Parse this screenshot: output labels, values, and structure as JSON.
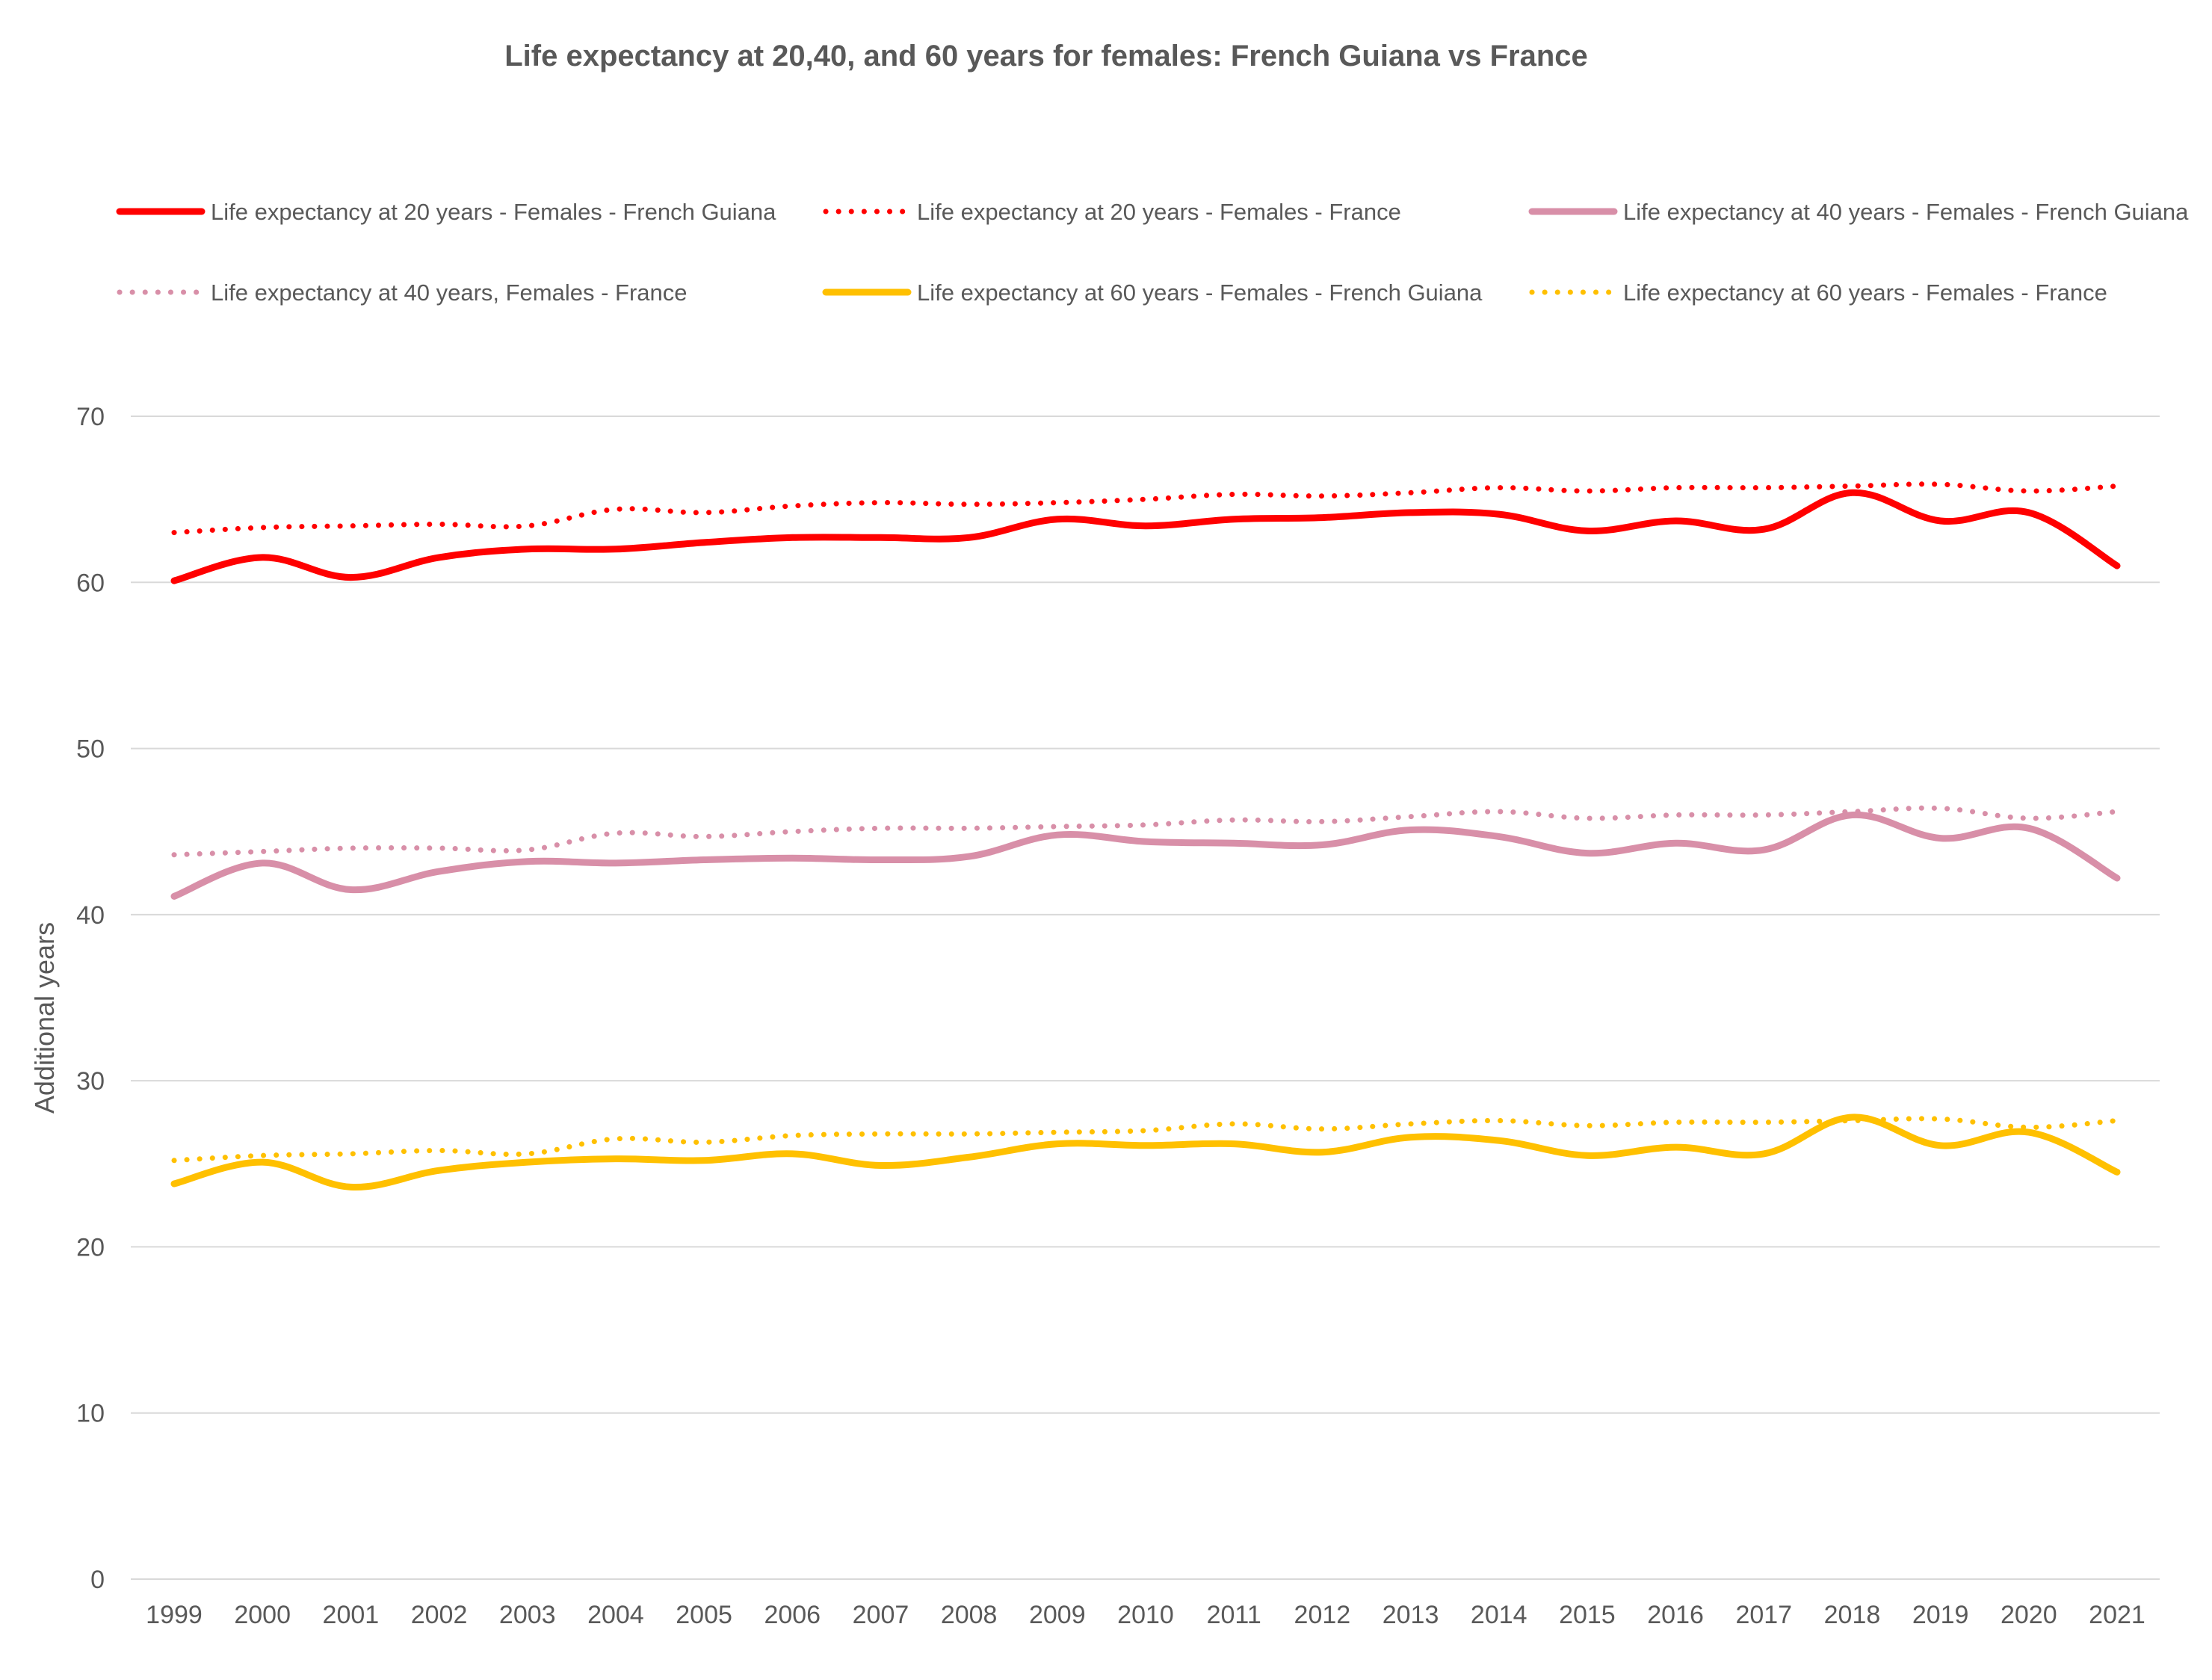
{
  "chart_data": {
    "type": "line",
    "title": "Life expectancy at 20,40, and 60 years for females: French Guiana vs France",
    "xlabel": "",
    "ylabel": "Additional years",
    "ylim": [
      0,
      70
    ],
    "yticks": [
      "0",
      "10",
      "20",
      "30",
      "40",
      "50",
      "60",
      "70"
    ],
    "grid": true,
    "legend_position": "top",
    "categories": [
      "1999",
      "2000",
      "2001",
      "2002",
      "2003",
      "2004",
      "2005",
      "2006",
      "2007",
      "2008",
      "2009",
      "2010",
      "2011",
      "2012",
      "2013",
      "2014",
      "2015",
      "2016",
      "2017",
      "2018",
      "2019",
      "2020",
      "2021"
    ],
    "series": [
      {
        "name": "Life expectancy at 20 years - Females - French Guiana",
        "color": "#ff0000",
        "style": "solid",
        "values": [
          60.1,
          61.5,
          60.3,
          61.5,
          62.0,
          62.0,
          62.4,
          62.7,
          62.7,
          62.7,
          63.8,
          63.4,
          63.8,
          63.9,
          64.2,
          64.1,
          63.1,
          63.7,
          63.2,
          65.4,
          63.7,
          64.2,
          61.0
        ]
      },
      {
        "name": "Life expectancy at  20 years - Females - France",
        "color": "#ff0000",
        "style": "dotted",
        "values": [
          63.0,
          63.3,
          63.4,
          63.5,
          63.4,
          64.4,
          64.2,
          64.6,
          64.8,
          64.7,
          64.8,
          65.0,
          65.3,
          65.2,
          65.4,
          65.7,
          65.5,
          65.7,
          65.7,
          65.8,
          65.9,
          65.5,
          65.8
        ]
      },
      {
        "name": "Life expectancy at  40 years - Females - French Guiana",
        "color": "#d88fa8",
        "style": "solid",
        "values": [
          41.1,
          43.1,
          41.5,
          42.6,
          43.2,
          43.1,
          43.3,
          43.4,
          43.3,
          43.5,
          44.8,
          44.4,
          44.3,
          44.2,
          45.1,
          44.7,
          43.7,
          44.3,
          43.9,
          46.0,
          44.6,
          45.2,
          42.2
        ]
      },
      {
        "name": "Life expectancy at 40 years, Females - France",
        "color": "#d88fa8",
        "style": "dotted",
        "values": [
          43.6,
          43.8,
          44.0,
          44.0,
          43.9,
          44.9,
          44.7,
          45.0,
          45.2,
          45.2,
          45.3,
          45.4,
          45.7,
          45.6,
          45.9,
          46.2,
          45.8,
          46.0,
          46.0,
          46.2,
          46.4,
          45.8,
          46.2
        ]
      },
      {
        "name": "Life expectancy at  60 years - Females - French Guiana",
        "color": "#ffc000",
        "style": "solid",
        "values": [
          23.8,
          25.1,
          23.6,
          24.6,
          25.1,
          25.3,
          25.2,
          25.6,
          24.9,
          25.4,
          26.2,
          26.1,
          26.2,
          25.7,
          26.6,
          26.4,
          25.5,
          26.0,
          25.6,
          27.8,
          26.1,
          26.9,
          24.5
        ]
      },
      {
        "name": "Life expectancy at  60 years - Females - France",
        "color": "#ffc000",
        "style": "dotted",
        "values": [
          25.2,
          25.5,
          25.6,
          25.8,
          25.6,
          26.5,
          26.3,
          26.7,
          26.8,
          26.8,
          26.9,
          27.0,
          27.4,
          27.1,
          27.4,
          27.6,
          27.3,
          27.5,
          27.5,
          27.6,
          27.7,
          27.2,
          27.6
        ]
      }
    ]
  }
}
